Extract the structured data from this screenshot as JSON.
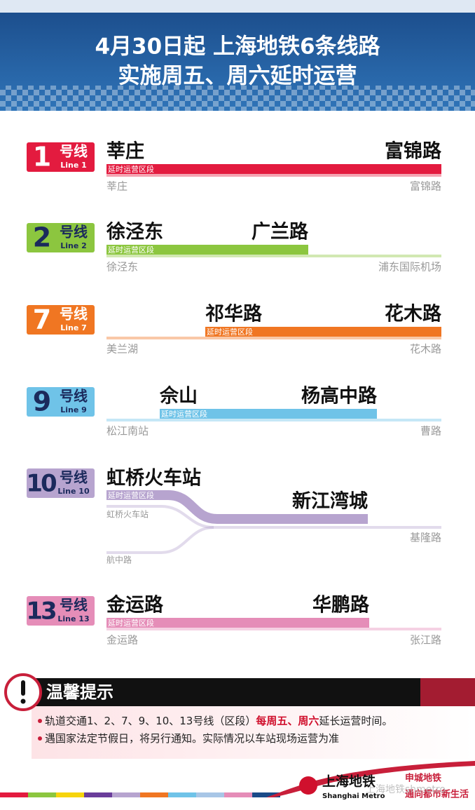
{
  "header": {
    "title_lines": [
      "4月30日起  上海地铁6条线路",
      "实施周五、周六延时运营"
    ]
  },
  "lines": [
    {
      "number": "1",
      "suffix": "号线",
      "english": "Line 1",
      "start": "莘庄",
      "end": "富锦路",
      "segment_label": "延时运营区段",
      "terminus_start": "莘庄",
      "terminus_end": "富锦路",
      "color": "#e31b3f"
    },
    {
      "number": "2",
      "suffix": "号线",
      "english": "Line 2",
      "start": "徐泾东",
      "end": "广兰路",
      "segment_label": "延时运营区段",
      "terminus_start": "徐泾东",
      "terminus_end": "浦东国际机场",
      "color": "#8cc63f"
    },
    {
      "number": "7",
      "suffix": "号线",
      "english": "Line 7",
      "start": "祁华路",
      "end": "花木路",
      "segment_label": "延时运营区段",
      "terminus_start": "美兰湖",
      "terminus_end": "花木路",
      "color": "#f07622"
    },
    {
      "number": "9",
      "suffix": "号线",
      "english": "Line 9",
      "start": "佘山",
      "end": "杨高中路",
      "segment_label": "延时运营区段",
      "terminus_start": "松江南站",
      "terminus_end": "曹路",
      "color": "#6fc3e8"
    },
    {
      "number": "10",
      "suffix": "号线",
      "english": "Line 10",
      "start": "虹桥火车站",
      "end": "新江湾城",
      "segment_label": "延时运营区段",
      "terminus_start": "虹桥火车站",
      "branch": "航中路",
      "terminus_end": "基隆路",
      "color": "#b7a4cf"
    },
    {
      "number": "13",
      "suffix": "号线",
      "english": "Line 13",
      "start": "金运路",
      "end": "华鹏路",
      "segment_label": "延时运营区段",
      "terminus_start": "金运路",
      "terminus_end": "张江路",
      "color": "#e58db8"
    }
  ],
  "notice": {
    "title": "温馨提示",
    "items": [
      [
        "轨道交通1、2、7、9、10、13号线（区段）",
        "每周五、周六",
        "延长运营时间。"
      ],
      [
        "遇国家法定节假日，将另行通知。实际情况以车站现场运营为准"
      ]
    ]
  },
  "footer": {
    "logo_cn": "上海地铁",
    "logo_en": "Shanghai Metro",
    "slogan_1": "申城地铁",
    "slogan_2": "通向都市新生活",
    "watermark": "上海地铁shmetro"
  }
}
